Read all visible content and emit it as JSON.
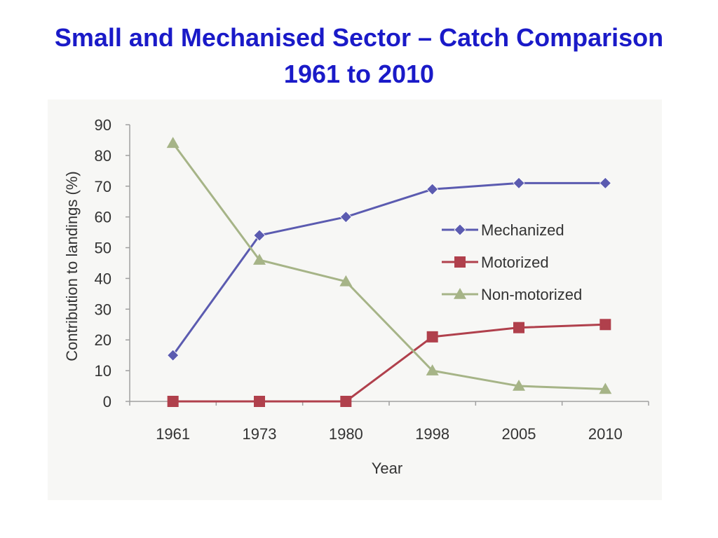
{
  "slide": {
    "title_line1": "Small and Mechanised Sector – Catch Comparison",
    "title_line2": "1961 to 2010"
  },
  "chart_data": {
    "type": "line",
    "categories": [
      "1961",
      "1973",
      "1980",
      "1998",
      "2005",
      "2010"
    ],
    "series": [
      {
        "name": "Mechanized",
        "values": [
          15,
          54,
          60,
          69,
          71,
          71
        ],
        "color": "#5b5bb0",
        "marker": "diamond"
      },
      {
        "name": "Motorized",
        "values": [
          0,
          0,
          0,
          21,
          24,
          25
        ],
        "color": "#b0404c",
        "marker": "square"
      },
      {
        "name": "Non-motorized",
        "values": [
          84,
          46,
          39,
          10,
          5,
          4
        ],
        "color": "#a6b487",
        "marker": "triangle"
      }
    ],
    "xlabel": "Year",
    "ylabel": "Contribution to landings (%)",
    "ylim": [
      0,
      90
    ],
    "yticks": [
      "0",
      "10",
      "20",
      "30",
      "40",
      "50",
      "60",
      "70",
      "80",
      "90"
    ],
    "legend_position": "right",
    "grid": false
  }
}
